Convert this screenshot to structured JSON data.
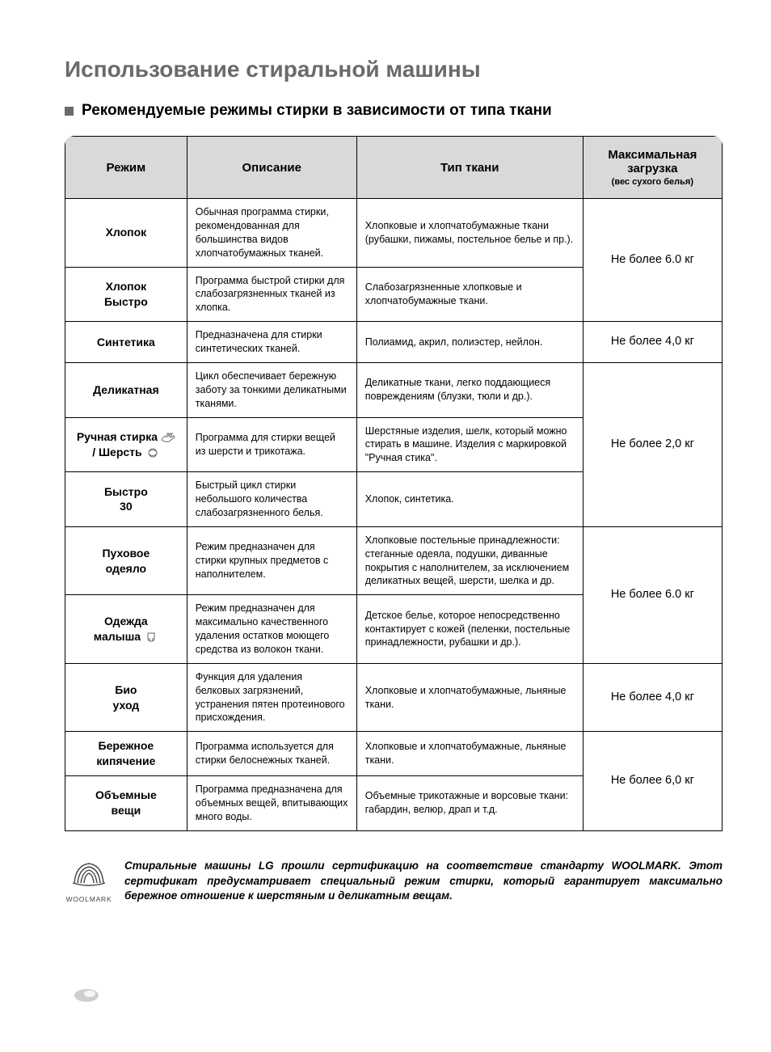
{
  "page": {
    "title": "Использование стиральной машины",
    "subtitle": "Рекомендуемые режимы стирки в зависимости от типа ткани"
  },
  "table": {
    "headers": {
      "mode": "Режим",
      "desc": "Описание",
      "fabric": "Тип ткани",
      "load_line1": "Максимальная",
      "load_line2": "загрузка",
      "load_sub": "(вес сухого белья)"
    },
    "groups": [
      {
        "load": "Не более 6.0 кг",
        "rows": [
          {
            "mode": "Хлопок",
            "desc": "Обычная программа стирки, рекомендованная для большинства видов хлопчатобумажных тканей.",
            "fabric": "Хлопковые и хлопчатобумажные ткани (рубашки, пижамы, постельное белье и пр.)."
          },
          {
            "mode": "Хлопок Быстро",
            "desc": "Программа быстрой стирки для слабозагрязненных тканей из хлопка.",
            "fabric": "Слабозагрязненные хлопковые и хлопчатобумажные ткани."
          }
        ]
      },
      {
        "load": "Не более 4,0 кг",
        "rows": [
          {
            "mode": "Синтетика",
            "desc": "Предназначена для стирки синтетических тканей.",
            "fabric": "Полиамид, акрил, полиэстер, нейлон."
          }
        ]
      },
      {
        "load": "Не более 2,0 кг",
        "rows": [
          {
            "mode": "Деликатная",
            "desc": "Цикл обеспечивает бережную заботу за тонкими деликатными тканями.",
            "fabric": "Деликатные ткани, легко поддающиеся повреждениям (блузки, тюли и др.)."
          },
          {
            "mode": "Ручная стирка / Шерсть",
            "icon": "hand-wool",
            "desc": "Программа для стирки вещей из шерсти и трикотажа.",
            "fabric": "Шерстяные изделия, шелк, который можно стирать в машине. Изделия с маркировкой \"Ручная стика\"."
          },
          {
            "mode": "Быстро 30",
            "desc": "Быстрый цикл стирки небольшого количества слабозагрязненного белья.",
            "fabric": "Хлопок, синтетика."
          }
        ]
      },
      {
        "load": "Не более 6.0 кг",
        "rows": [
          {
            "mode": "Пуховое одеяло",
            "desc": "Режим предназначен для стирки крупных предметов с наполнителем.",
            "fabric": "Хлопковые постельные принадлежности: стеганные одеяла, подушки, диванные покрытия с наполнителем, за исключением деликатных вещей, шерсти, шелка и др."
          },
          {
            "mode": "Одежда малыша",
            "icon": "baby",
            "desc": "Режим предназначен для максимально качественного удаления остатков моющего средства из волокон ткани.",
            "fabric": "Детское белье, которое непосредственно контактирует с кожей (пеленки, постельные принадлежности, рубашки и др.)."
          }
        ]
      },
      {
        "load": "Не более 4,0 кг",
        "rows": [
          {
            "mode": "Био уход",
            "desc": "Функция для удаления белковых загрязнений, устранения пятен протеинового присхождения.",
            "fabric": "Хлопковые и хлопчатобумажные, льняные ткани."
          }
        ]
      },
      {
        "load": "Не более 6,0 кг",
        "rows": [
          {
            "mode": "Бережное кипячение",
            "desc": "Программа используется для стирки белоснежных тканей.",
            "fabric": "Хлопковые и хлопчатобумажные, льняные ткани."
          },
          {
            "mode": "Объемные вещи",
            "desc": "Программа предназначена для объемных вещей, впитывающих много воды.",
            "fabric": "Объемные трикотажные и ворсовые ткани: габардин, велюр, драп и т.д."
          }
        ]
      }
    ]
  },
  "footer": {
    "woolmark_label": "WOOLMARK",
    "text": "Стиральные машины LG прошли сертификацию на соответствие стандарту WOOLMARK. Этот сертификат предусматривает специальный режим стирки, который гарантирует максимально бережное отношение к шерстяным и деликатным вещам."
  },
  "colors": {
    "heading": "#6a6a6a",
    "header_bg": "#d9d9d9",
    "border": "#000000",
    "text": "#000000"
  }
}
